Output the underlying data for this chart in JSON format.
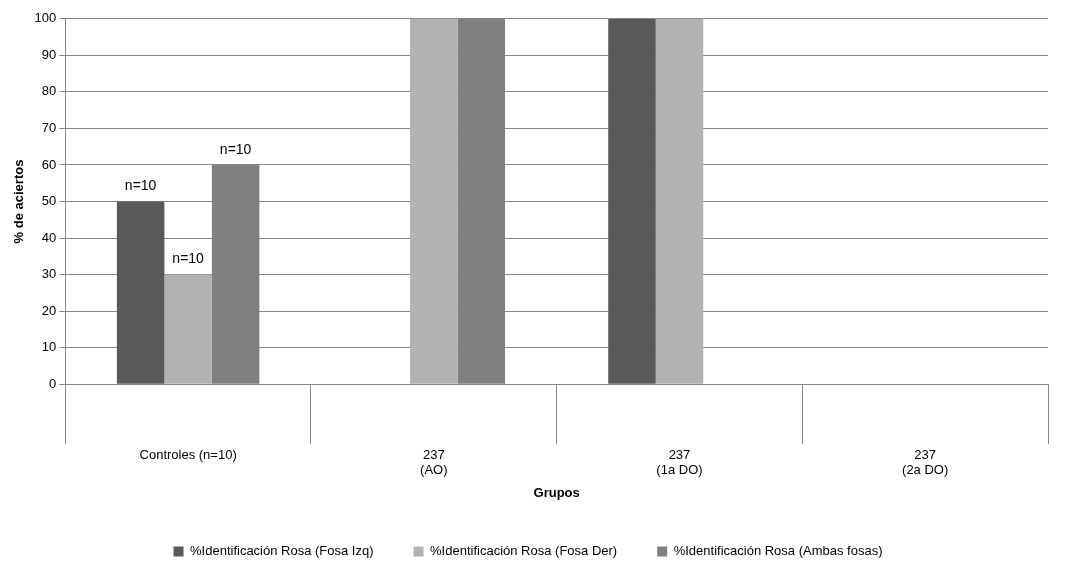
{
  "chart_data": {
    "type": "bar",
    "xlabel": "Grupos",
    "ylabel": "% de aciertos",
    "categories": [
      "Controles (n=10)",
      "237\n(AO)",
      "237\n(1a DO)",
      "237\n(2a DO)"
    ],
    "series": [
      {
        "name": "%Identificación Rosa (Fosa Izq)",
        "color": "#595959",
        "values": [
          50,
          null,
          100,
          null
        ]
      },
      {
        "name": "%Identificación Rosa (Fosa Der)",
        "color": "#b2b2b2",
        "values": [
          30,
          100,
          100,
          null
        ]
      },
      {
        "name": "%Identificación Rosa (Ambas fosas)",
        "color": "#808080",
        "values": [
          60,
          100,
          null,
          null
        ]
      }
    ],
    "annotations": [
      "n=10",
      "n=10",
      "n=10"
    ],
    "ylim": [
      0,
      100
    ],
    "yticks": [
      0,
      10,
      20,
      30,
      40,
      50,
      60,
      70,
      80,
      90,
      100
    ],
    "grid": "y",
    "legend": "bottom"
  }
}
